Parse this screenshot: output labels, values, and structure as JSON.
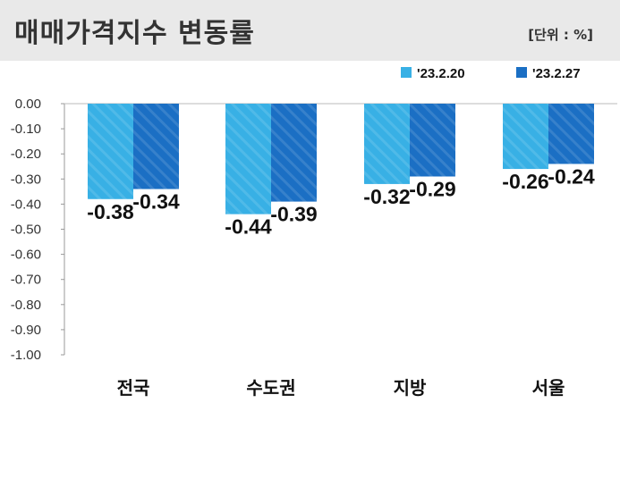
{
  "header": {
    "title": "매매가격지수 변동률",
    "unit": "[단위 : %]"
  },
  "colors": {
    "series1": "#38b0e5",
    "series2": "#1b6fc4"
  },
  "chart_data": {
    "type": "bar",
    "categories": [
      "전국",
      "수도권",
      "지방",
      "서울"
    ],
    "series": [
      {
        "name": "'23.2.20",
        "values": [
          -0.38,
          -0.44,
          -0.32,
          -0.26
        ],
        "labels": [
          "-0.38",
          "-0.44",
          "-0.32",
          "-0.26"
        ]
      },
      {
        "name": "'23.2.27",
        "values": [
          -0.34,
          -0.39,
          -0.29,
          -0.24
        ],
        "labels": [
          "-0.34",
          "-0.39",
          "-0.29",
          "-0.24"
        ]
      }
    ],
    "ylim": [
      -1.0,
      0.0
    ],
    "yticks": [
      "0.00",
      "-0.10",
      "-0.20",
      "-0.30",
      "-0.40",
      "-0.50",
      "-0.60",
      "-0.70",
      "-0.80",
      "-0.90",
      "-1.00"
    ],
    "legend": "top-right",
    "grid": false
  }
}
